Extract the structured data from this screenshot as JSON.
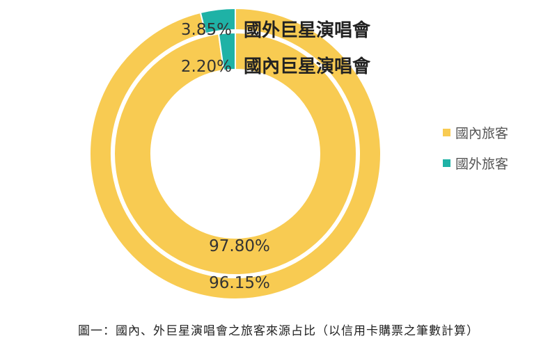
{
  "chart_data": {
    "type": "pie",
    "subtype": "nested-donut",
    "rings": [
      {
        "name": "國外巨星演唱會",
        "position": "outer",
        "slices": [
          {
            "label": "國內旅客",
            "value": 96.15,
            "text": "96.15%"
          },
          {
            "label": "國外旅客",
            "value": 3.85,
            "text": "3.85%"
          }
        ]
      },
      {
        "name": "國內巨星演唱會",
        "position": "inner",
        "slices": [
          {
            "label": "國內旅客",
            "value": 97.8,
            "text": "97.80%"
          },
          {
            "label": "國外旅客",
            "value": 2.2,
            "text": "2.20%"
          }
        ]
      }
    ],
    "legend": [
      {
        "label": "國內旅客",
        "color": "#F8CB52"
      },
      {
        "label": "國外旅客",
        "color": "#1FB2A6"
      }
    ],
    "legend_position": "right",
    "caption": "圖一：國內、外巨星演唱會之旅客來源占比（以信用卡購票之筆數計算）"
  }
}
